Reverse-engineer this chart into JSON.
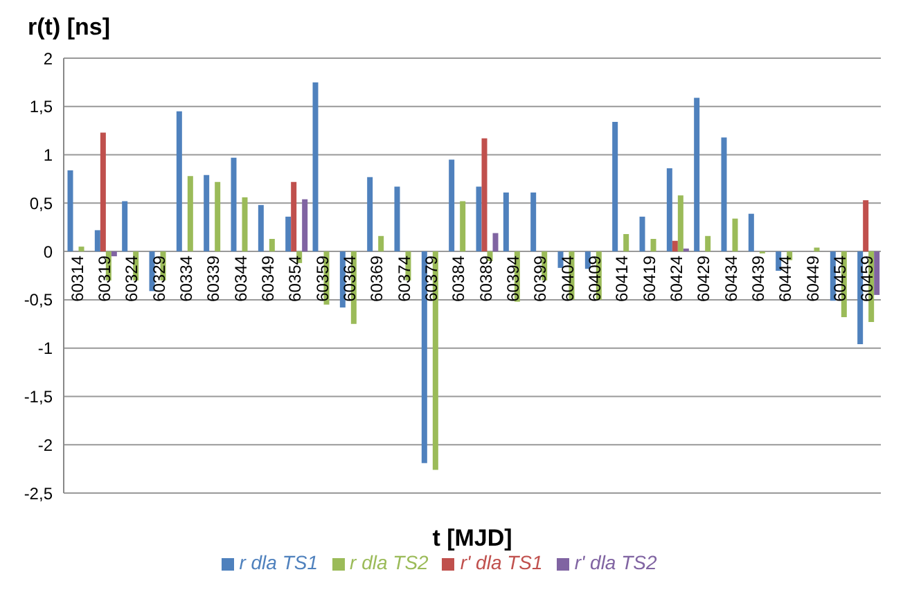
{
  "chart_data": {
    "type": "bar",
    "title": "r(t) [ns]",
    "xlabel": "t [MJD]",
    "categories": [
      "60314",
      "60319",
      "60324",
      "60329",
      "60334",
      "60339",
      "60344",
      "60349",
      "60354",
      "60359",
      "60364",
      "60369",
      "60374",
      "60379",
      "60384",
      "60389",
      "60394",
      "60399",
      "60404",
      "60409",
      "60414",
      "60419",
      "60424",
      "60429",
      "60434",
      "60439",
      "60444",
      "60449",
      "60454",
      "60459"
    ],
    "series": [
      {
        "name": "r dla TS1",
        "color": "#4f81bd",
        "values": [
          0.84,
          0.22,
          0.52,
          -0.41,
          1.45,
          0.79,
          0.97,
          0.48,
          0.36,
          1.75,
          -0.58,
          0.77,
          0.67,
          -2.19,
          0.95,
          0.67,
          0.61,
          0.61,
          -0.17,
          -0.18,
          1.34,
          0.36,
          0.86,
          1.59,
          1.18,
          0.39,
          -0.2,
          0,
          -0.51,
          -0.96
        ]
      },
      {
        "name": "r' dla TS1",
        "color": "#c0504d",
        "values": [
          null,
          1.23,
          null,
          null,
          null,
          null,
          null,
          null,
          0.72,
          null,
          null,
          null,
          null,
          null,
          null,
          1.17,
          null,
          null,
          null,
          null,
          null,
          null,
          0.11,
          null,
          null,
          null,
          null,
          null,
          null,
          0.53
        ]
      },
      {
        "name": "r dla TS2",
        "color": "#9bbb59",
        "values": [
          0.05,
          -0.3,
          -0.3,
          -0.3,
          0.78,
          0.72,
          0.56,
          0.13,
          -0.12,
          -0.55,
          -0.75,
          0.16,
          -0.3,
          -2.26,
          0.52,
          -0.1,
          -0.52,
          -0.3,
          -0.5,
          -0.5,
          0.18,
          0.13,
          0.58,
          0.16,
          0.34,
          -0.02,
          -0.09,
          0.04,
          -0.68,
          -0.73
        ]
      },
      {
        "name": "r' dla TS2",
        "color": "#8064a2",
        "values": [
          null,
          -0.05,
          null,
          null,
          null,
          null,
          null,
          null,
          0.54,
          null,
          null,
          null,
          null,
          null,
          null,
          0.19,
          null,
          null,
          null,
          null,
          null,
          null,
          0.03,
          null,
          null,
          null,
          null,
          null,
          null,
          -0.45
        ]
      }
    ],
    "ylim": [
      -2.5,
      2
    ],
    "yticks": [
      {
        "value": -2.5,
        "label": "-2,5"
      },
      {
        "value": -2,
        "label": "-2"
      },
      {
        "value": -1.5,
        "label": "-1,5"
      },
      {
        "value": -1,
        "label": "-1"
      },
      {
        "value": -0.5,
        "label": "-0,5"
      },
      {
        "value": 0,
        "label": "0"
      },
      {
        "value": 0.5,
        "label": "0,5"
      },
      {
        "value": 1,
        "label": "1"
      },
      {
        "value": 1.5,
        "label": "1,5"
      },
      {
        "value": 2,
        "label": "2"
      }
    ],
    "grid": "y",
    "legend": "bottom"
  }
}
